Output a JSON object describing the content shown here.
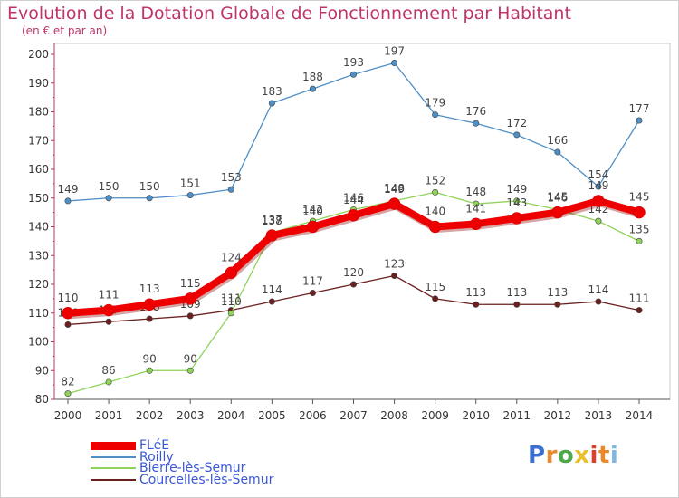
{
  "title": "Evolution de la Dotation Globale de Fonctionnement par Habitant",
  "subtitle": "(en € et par an)",
  "logo": {
    "text": "Proxiti",
    "letter_colors": [
      "#3b6fd1",
      "#e8892c",
      "#4ea84c",
      "#e8c12c",
      "#d8412f",
      "#e8892c",
      "#7fb7e0"
    ]
  },
  "chart_data": {
    "type": "line",
    "x": [
      2000,
      2001,
      2002,
      2003,
      2004,
      2005,
      2006,
      2007,
      2008,
      2009,
      2010,
      2011,
      2012,
      2013,
      2014
    ],
    "ylim": [
      80,
      200
    ],
    "yticks": [
      80,
      90,
      100,
      110,
      120,
      130,
      140,
      150,
      160,
      170,
      180,
      190,
      200
    ],
    "grid": false,
    "legend_position": "bottom-left",
    "series": [
      {
        "name": "Courcelles-lès-Semur",
        "color": "#6b1f1f",
        "values": [
          106,
          107,
          108,
          109,
          111,
          114,
          117,
          120,
          123,
          115,
          113,
          113,
          113,
          114,
          111
        ],
        "labels": [
          "106",
          "107",
          "108",
          "109",
          "111",
          "114",
          "117",
          "120",
          "123",
          "115",
          "113",
          "113",
          "113",
          "114",
          "111"
        ]
      },
      {
        "name": "Bierre-lès-Semur",
        "color": "#8fd35a",
        "values": [
          82,
          86,
          90,
          90,
          110,
          138,
          142,
          146,
          149,
          152,
          148,
          149,
          146,
          142,
          135
        ],
        "labels": [
          "82",
          "86",
          "90",
          "90",
          "110",
          "138",
          "142",
          "146",
          "149",
          "152",
          "148",
          "149",
          "146",
          "142",
          "135"
        ]
      },
      {
        "name": "Roilly",
        "color": "#4f8fc6",
        "values": [
          149,
          150,
          150,
          151,
          153,
          183,
          188,
          193,
          197,
          179,
          176,
          172,
          166,
          154,
          177
        ],
        "labels": [
          "149",
          "150",
          "150",
          "151",
          "153",
          "183",
          "188",
          "193",
          "197",
          "179",
          "176",
          "172",
          "166",
          "154",
          "177"
        ]
      },
      {
        "name": "FLéE",
        "color": "#ee0000",
        "values": [
          110,
          111,
          113,
          115,
          124,
          137,
          140,
          144,
          148,
          140,
          141,
          143,
          145,
          149,
          145
        ],
        "labels": [
          "110",
          "111",
          "113",
          "115",
          "124",
          "137",
          "140",
          "144",
          "148",
          "140",
          "141",
          "143",
          "145",
          "149",
          "145"
        ]
      }
    ],
    "legend_order": [
      "FLéE",
      "Roilly",
      "Bierre-lès-Semur",
      "Courcelles-lès-Semur"
    ]
  }
}
